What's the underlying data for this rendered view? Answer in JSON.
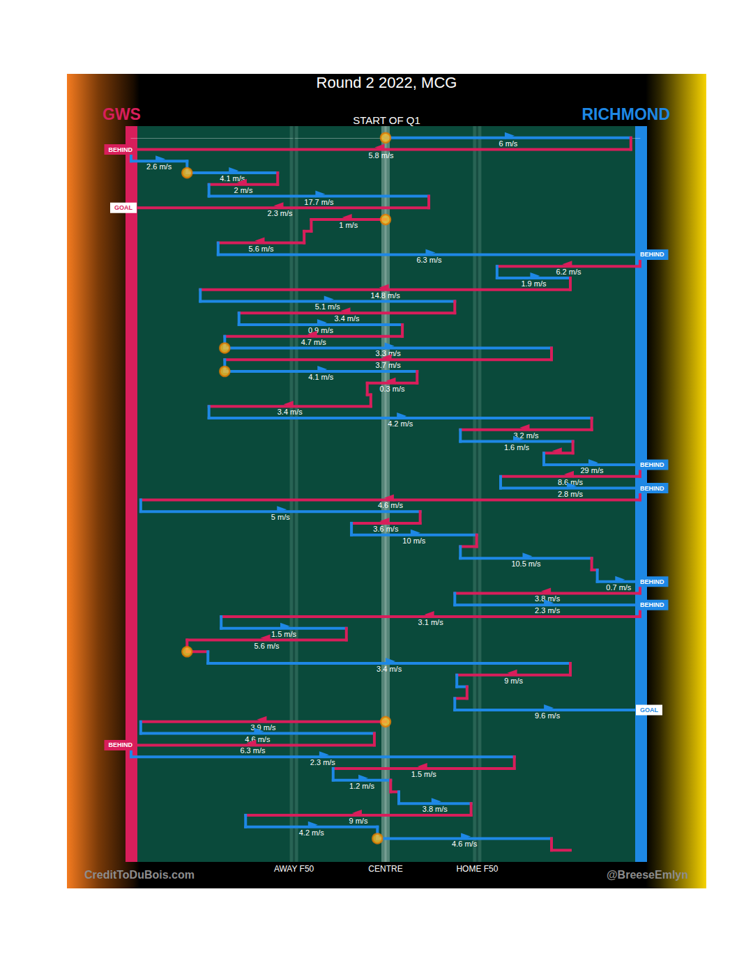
{
  "chart_data": {
    "type": "flow",
    "title": "Round 2 2022, MCG",
    "subtitle": "START OF Q1",
    "annotations": [
      "CreditToDuBois.com",
      "@BreeseEmlyn"
    ],
    "series": [
      {
        "name": "GWS",
        "color": "#d81e5b"
      },
      {
        "name": "RICHMOND",
        "color": "#1e88e5"
      }
    ],
    "xlim": [
      0,
      100
    ],
    "xticks": [
      {
        "value": 32,
        "label": "AWAY F50"
      },
      {
        "value": 50,
        "label": "CENTRE"
      },
      {
        "value": 68,
        "label": "HOME F50"
      }
    ],
    "ylim": [
      -1,
      62
    ],
    "tick_labels": "x",
    "data_labels": true,
    "segments": [
      {
        "team": "RICHMOND",
        "from": 50,
        "to": 98.2,
        "label": "6 m/s",
        "stoppage": true
      },
      {
        "team": "GWS",
        "from": 98.2,
        "to": 0,
        "label": "5.8 m/s",
        "result": "BEHIND",
        "marker": "filled"
      },
      {
        "team": "RICHMOND",
        "from": 0,
        "to": 11,
        "label": "2.6 m/s"
      },
      {
        "team": "RICHMOND",
        "from": 11,
        "to": 28.8,
        "label": "4.1 m/s",
        "stoppage": true
      },
      {
        "team": "GWS",
        "from": 28.8,
        "to": 15.3,
        "label": "2 m/s"
      },
      {
        "team": "RICHMOND",
        "from": 15.3,
        "to": 58.5,
        "label": "17.7 m/s"
      },
      {
        "team": "GWS",
        "from": 58.5,
        "to": 0,
        "label": "2.3 m/s",
        "result": "GOAL",
        "marker": "outline"
      },
      {
        "team": "GWS",
        "from": 50,
        "to": 35.4,
        "label": "1 m/s",
        "stoppage": true
      },
      {
        "team": "GWS",
        "from": 35.4,
        "to": 34
      },
      {
        "team": "GWS",
        "from": 34,
        "to": 17.1,
        "label": "5.6 m/s"
      },
      {
        "team": "RICHMOND",
        "from": 17.1,
        "to": 100,
        "label": "6.3 m/s",
        "result": "BEHIND",
        "marker": "filled"
      },
      {
        "team": "GWS",
        "from": 100,
        "to": 71.9,
        "label": "6.2 m/s"
      },
      {
        "team": "RICHMOND",
        "from": 71.9,
        "to": 86.3,
        "label": "1.9 m/s"
      },
      {
        "team": "GWS",
        "from": 86.3,
        "to": 13.6,
        "label": "14.8 m/s"
      },
      {
        "team": "RICHMOND",
        "from": 13.6,
        "to": 63.6,
        "label": "5.1 m/s"
      },
      {
        "team": "GWS",
        "from": 63.6,
        "to": 21.2,
        "label": "3.4 m/s"
      },
      {
        "team": "RICHMOND",
        "from": 21.2,
        "to": 53.3,
        "label": "0.9 m/s"
      },
      {
        "team": "GWS",
        "from": 53.3,
        "to": 18.4,
        "label": "4.7 m/s"
      },
      {
        "team": "RICHMOND",
        "from": 18.4,
        "to": 82.6,
        "label": "3.3 m/s",
        "stoppage": true
      },
      {
        "team": "GWS",
        "from": 82.6,
        "to": 18.4,
        "label": "3.7 m/s"
      },
      {
        "team": "RICHMOND",
        "from": 18.4,
        "to": 56.2,
        "label": "4.1 m/s",
        "stoppage": true
      },
      {
        "team": "GWS",
        "from": 56.2,
        "to": 46.4,
        "label": "0.3 m/s"
      },
      {
        "team": "GWS",
        "from": 46.4,
        "to": 47.1
      },
      {
        "team": "GWS",
        "from": 47.1,
        "to": 15.3,
        "label": "3.4 m/s"
      },
      {
        "team": "RICHMOND",
        "from": 15.3,
        "to": 90.5,
        "label": "4.2 m/s"
      },
      {
        "team": "GWS",
        "from": 90.5,
        "to": 64.7,
        "label": "3.2 m/s"
      },
      {
        "team": "RICHMOND",
        "from": 64.7,
        "to": 86.8,
        "label": "1.6 m/s"
      },
      {
        "team": "GWS",
        "from": 86.8,
        "to": 81.1
      },
      {
        "team": "RICHMOND",
        "from": 81.1,
        "to": 100,
        "label": "29 m/s",
        "result": "BEHIND",
        "marker": "filled"
      },
      {
        "team": "GWS",
        "from": 100,
        "to": 72.6,
        "label": "8.6 m/s"
      },
      {
        "team": "RICHMOND",
        "from": 72.6,
        "to": 100,
        "label": "2.8 m/s",
        "result": "BEHIND",
        "marker": "filled"
      },
      {
        "team": "GWS",
        "from": 100,
        "to": 1.9,
        "label": "4.6 m/s"
      },
      {
        "team": "RICHMOND",
        "from": 1.9,
        "to": 56.8,
        "label": "5 m/s"
      },
      {
        "team": "GWS",
        "from": 56.8,
        "to": 43.3,
        "label": "3.6 m/s"
      },
      {
        "team": "RICHMOND",
        "from": 43.3,
        "to": 67.9,
        "label": "10 m/s"
      },
      {
        "team": "GWS",
        "from": 67.9,
        "to": 64.7
      },
      {
        "team": "RICHMOND",
        "from": 64.7,
        "to": 90.5,
        "label": "10.5 m/s"
      },
      {
        "team": "GWS",
        "from": 90.5,
        "to": 91.6
      },
      {
        "team": "RICHMOND",
        "from": 91.6,
        "to": 100,
        "label": "0.7 m/s",
        "result": "BEHIND",
        "marker": "filled"
      },
      {
        "team": "GWS",
        "from": 100,
        "to": 63.6,
        "label": "3.8 m/s"
      },
      {
        "team": "RICHMOND",
        "from": 63.6,
        "to": 100,
        "label": "2.3 m/s",
        "result": "BEHIND",
        "marker": "filled"
      },
      {
        "team": "GWS",
        "from": 100,
        "to": 17.7,
        "label": "3.1 m/s"
      },
      {
        "team": "RICHMOND",
        "from": 17.7,
        "to": 42.3,
        "label": "1.5 m/s"
      },
      {
        "team": "GWS",
        "from": 42.3,
        "to": 11,
        "label": "5.6 m/s"
      },
      {
        "team": "GWS",
        "from": 11,
        "to": 15.1,
        "stoppage": true
      },
      {
        "team": "RICHMOND",
        "from": 15.1,
        "to": 86.3,
        "label": "3.4 m/s"
      },
      {
        "team": "GWS",
        "from": 86.3,
        "to": 64,
        "label": "9 m/s"
      },
      {
        "team": "RICHMOND",
        "from": 64,
        "to": 66
      },
      {
        "team": "GWS",
        "from": 66,
        "to": 63.6
      },
      {
        "team": "RICHMOND",
        "from": 63.6,
        "to": 100,
        "label": "9.6 m/s",
        "result": "GOAL",
        "marker": "outline"
      },
      {
        "team": "GWS",
        "from": 50,
        "to": 1.9,
        "label": "3.9 m/s",
        "stoppage": true
      },
      {
        "team": "RICHMOND",
        "from": 1.9,
        "to": 47.8,
        "label": "4.6 m/s"
      },
      {
        "team": "GWS",
        "from": 47.8,
        "to": 0,
        "label": "6.3 m/s",
        "result": "BEHIND",
        "marker": "filled"
      },
      {
        "team": "RICHMOND",
        "from": 0,
        "to": 75.3,
        "label": "2.3 m/s"
      },
      {
        "team": "GWS",
        "from": 75.3,
        "to": 39.7,
        "label": "1.5 m/s"
      },
      {
        "team": "RICHMOND",
        "from": 39.7,
        "to": 51,
        "label": "1.2 m/s"
      },
      {
        "team": "GWS",
        "from": 51,
        "to": 52.6
      },
      {
        "team": "RICHMOND",
        "from": 52.6,
        "to": 66.8,
        "label": "3.8 m/s"
      },
      {
        "team": "GWS",
        "from": 66.8,
        "to": 22.5,
        "label": "9 m/s"
      },
      {
        "team": "RICHMOND",
        "from": 22.5,
        "to": 48.4,
        "label": "4.2 m/s"
      },
      {
        "team": "RICHMOND",
        "from": 48.4,
        "to": 82.6,
        "label": "4.6 m/s",
        "stoppage": true
      },
      {
        "team": "GWS",
        "from": 82.6,
        "to": 86.3
      }
    ]
  }
}
